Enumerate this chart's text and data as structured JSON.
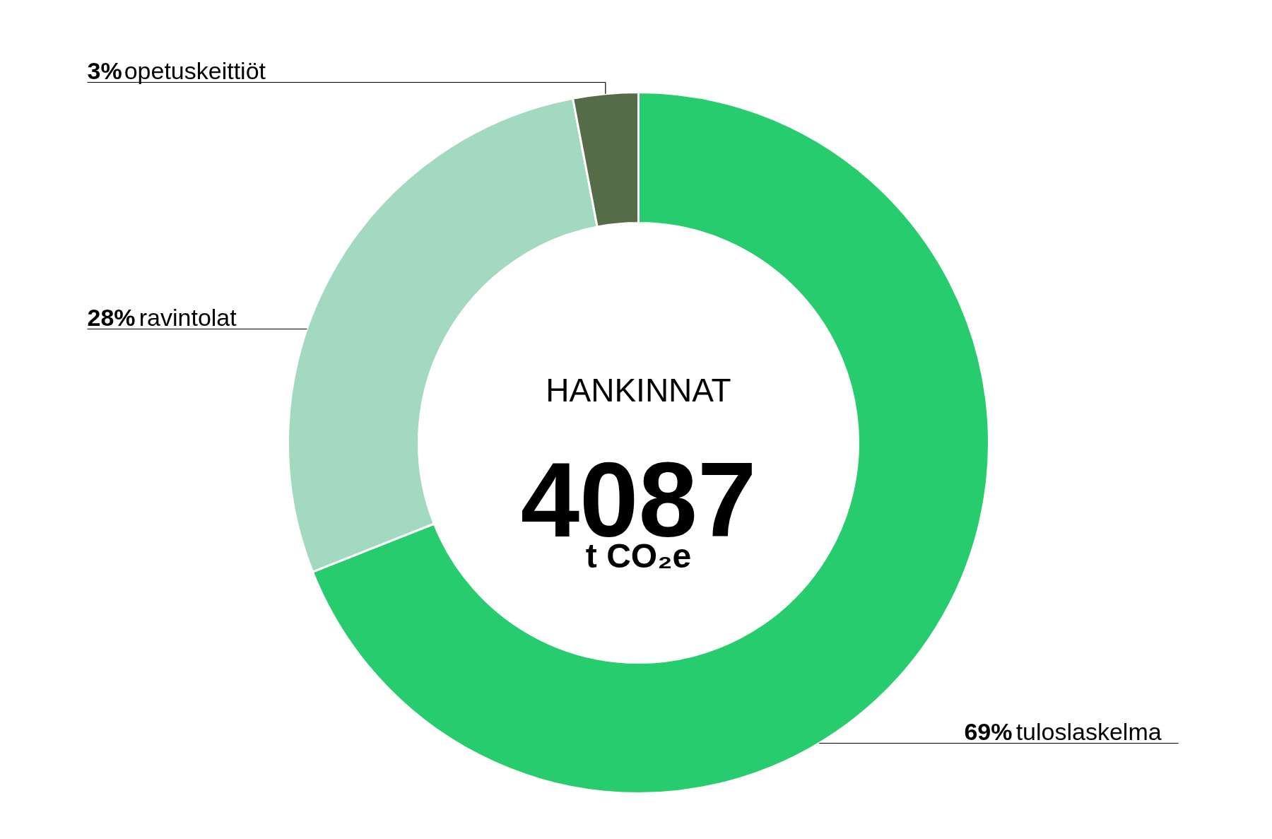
{
  "chart_data": {
    "type": "donut",
    "title": "HANKINNAT",
    "annotations": [
      "4087",
      "t CO₂e"
    ],
    "categories": [
      "tuloslaskelma",
      "ravintolat",
      "opetuskeittiöt"
    ],
    "values": [
      69,
      28,
      3
    ],
    "colors": [
      "#27cc6f",
      "#a3d9c0",
      "#566b48"
    ],
    "value_labels": [
      "69%",
      "28%",
      "3%"
    ]
  }
}
